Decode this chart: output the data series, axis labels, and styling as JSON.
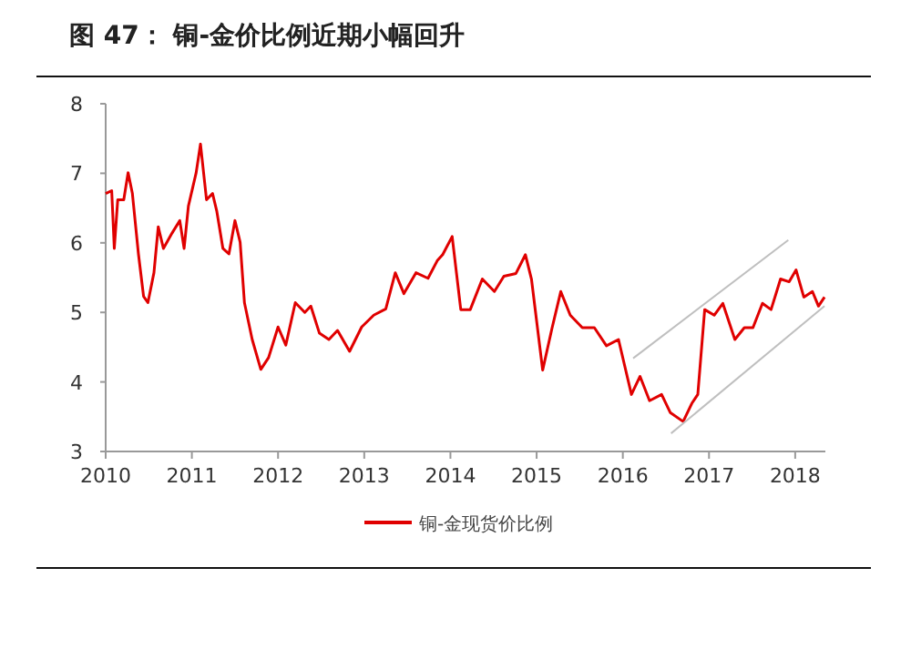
{
  "chart_data": {
    "type": "line",
    "title": "图 47：  铜-金价比例近期小幅回升",
    "xlim": [
      2010,
      2018.35
    ],
    "ylim": [
      3,
      8
    ],
    "xticks": [
      2010,
      2011,
      2012,
      2013,
      2014,
      2015,
      2016,
      2017,
      2018
    ],
    "yticks": [
      3,
      4,
      5,
      6,
      7,
      8
    ],
    "legend": "bottom",
    "grid": false,
    "marker": "none",
    "line_style": "solid",
    "series": [
      {
        "name": "铜-金现货价比例",
        "color": "#e00000",
        "x": [
          2010.0,
          2010.07,
          2010.1,
          2010.14,
          2010.21,
          2010.26,
          2010.31,
          2010.38,
          2010.44,
          2010.49,
          2010.56,
          2010.61,
          2010.67,
          2010.77,
          2010.86,
          2010.91,
          2010.96,
          2011.05,
          2011.1,
          2011.17,
          2011.24,
          2011.29,
          2011.36,
          2011.43,
          2011.5,
          2011.56,
          2011.61,
          2011.7,
          2011.8,
          2011.89,
          2012.0,
          2012.09,
          2012.2,
          2012.31,
          2012.38,
          2012.48,
          2012.59,
          2012.69,
          2012.83,
          2012.97,
          2013.11,
          2013.25,
          2013.36,
          2013.46,
          2013.6,
          2013.74,
          2013.85,
          2013.91,
          2014.02,
          2014.12,
          2014.23,
          2014.37,
          2014.51,
          2014.62,
          2014.76,
          2014.87,
          2014.94,
          2015.07,
          2015.18,
          2015.28,
          2015.39,
          2015.53,
          2015.67,
          2015.81,
          2015.95,
          2016.1,
          2016.2,
          2016.31,
          2016.45,
          2016.55,
          2016.7,
          2016.8,
          2016.87,
          2016.95,
          2017.06,
          2017.16,
          2017.3,
          2017.41,
          2017.51,
          2017.62,
          2017.72,
          2017.83,
          2017.93,
          2018.01,
          2018.1,
          2018.2,
          2018.27,
          2018.34
        ],
        "values": [
          6.71,
          6.75,
          5.92,
          6.62,
          6.62,
          7.01,
          6.71,
          5.84,
          5.23,
          5.14,
          5.57,
          6.23,
          5.92,
          6.14,
          6.32,
          5.92,
          6.53,
          7.01,
          7.42,
          6.62,
          6.71,
          6.45,
          5.92,
          5.84,
          6.32,
          6.01,
          5.14,
          4.61,
          4.18,
          4.35,
          4.79,
          4.53,
          5.14,
          5.0,
          5.09,
          4.7,
          4.61,
          4.74,
          4.44,
          4.79,
          4.96,
          5.05,
          5.57,
          5.27,
          5.57,
          5.49,
          5.75,
          5.83,
          6.09,
          5.04,
          5.04,
          5.48,
          5.3,
          5.52,
          5.56,
          5.83,
          5.48,
          4.17,
          4.78,
          5.3,
          4.96,
          4.78,
          4.78,
          4.52,
          4.61,
          3.82,
          4.08,
          3.73,
          3.82,
          3.56,
          3.43,
          3.69,
          3.82,
          5.04,
          4.96,
          5.13,
          4.61,
          4.78,
          4.78,
          5.13,
          5.04,
          5.48,
          5.44,
          5.61,
          5.22,
          5.3,
          5.09,
          5.22
        ]
      },
      {
        "color": "#bfbfbf",
        "x": [
          2016.12,
          2017.92
        ],
        "values": [
          4.34,
          6.04
        ]
      },
      {
        "color": "#bfbfbf",
        "x": [
          2016.56,
          2018.34
        ],
        "values": [
          3.26,
          5.09
        ]
      }
    ]
  }
}
